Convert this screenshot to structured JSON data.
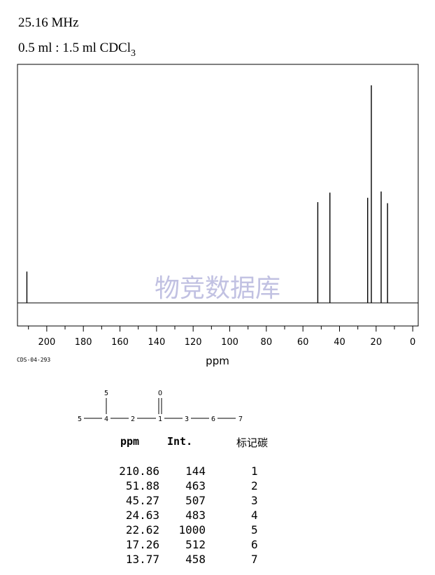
{
  "header": {
    "frequency": "25.16 MHz",
    "solvent_main": "0.5 ml : 1.5 ml CDCl",
    "solvent_sub": "3"
  },
  "spectrum_code": "CDS-04-293",
  "watermark": "物竞数据库",
  "colors": {
    "watermark": "#b7b7dd",
    "line": "#000000"
  },
  "chart_data": {
    "type": "bar",
    "xlabel": "ppm",
    "ylabel": "",
    "xlim": [
      216,
      -3
    ],
    "ylim": [
      0,
      1000
    ],
    "xticks": [
      200,
      180,
      160,
      140,
      120,
      100,
      80,
      60,
      40,
      20,
      0
    ],
    "peaks": [
      {
        "ppm": 210.86,
        "intensity": 144,
        "assignment": "1"
      },
      {
        "ppm": 51.88,
        "intensity": 463,
        "assignment": "2"
      },
      {
        "ppm": 45.27,
        "intensity": 507,
        "assignment": "3"
      },
      {
        "ppm": 24.63,
        "intensity": 483,
        "assignment": "4"
      },
      {
        "ppm": 22.62,
        "intensity": 1000,
        "assignment": "5"
      },
      {
        "ppm": 17.26,
        "intensity": 512,
        "assignment": "6"
      },
      {
        "ppm": 13.77,
        "intensity": 458,
        "assignment": "7"
      }
    ]
  },
  "structure": {
    "atoms": [
      "5",
      "5",
      "4",
      "2",
      "1",
      "O",
      "3",
      "6",
      "7"
    ]
  },
  "table": {
    "headers": {
      "ppm": "ppm",
      "int": "Int.",
      "assign": "标记碳"
    },
    "rows": [
      {
        "ppm": "210.86",
        "int": "144",
        "assign": "1"
      },
      {
        "ppm": "51.88",
        "int": "463",
        "assign": "2"
      },
      {
        "ppm": "45.27",
        "int": "507",
        "assign": "3"
      },
      {
        "ppm": "24.63",
        "int": "483",
        "assign": "4"
      },
      {
        "ppm": "22.62",
        "int": "1000",
        "assign": "5"
      },
      {
        "ppm": "17.26",
        "int": "512",
        "assign": "6"
      },
      {
        "ppm": "13.77",
        "int": "458",
        "assign": "7"
      }
    ]
  }
}
